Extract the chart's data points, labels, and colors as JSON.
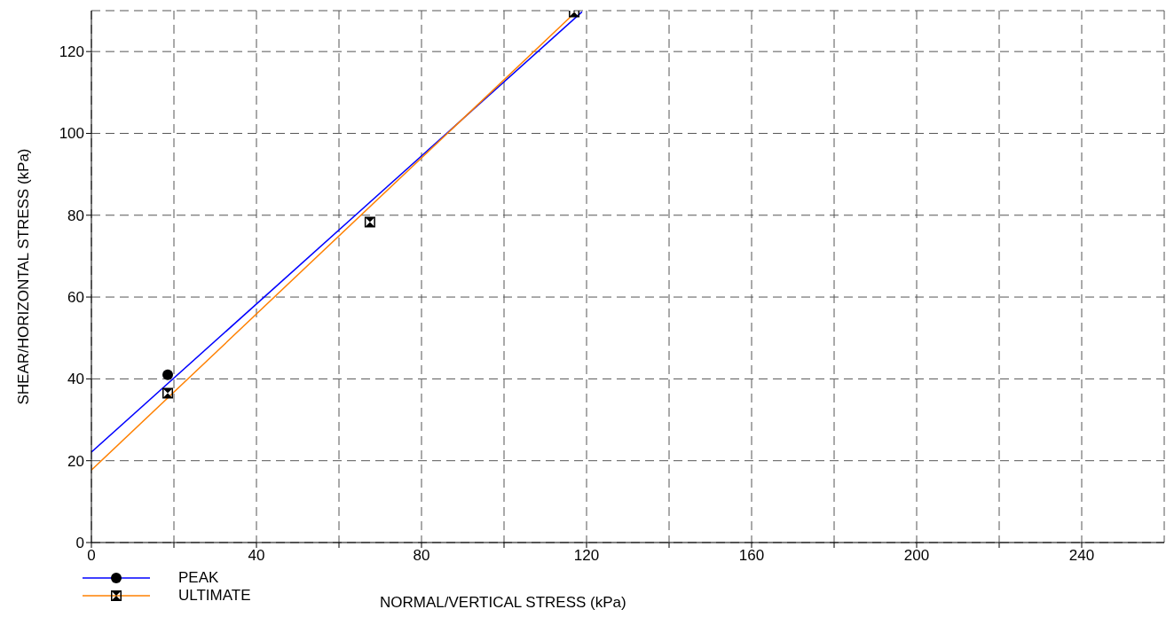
{
  "chart_data": {
    "type": "scatter",
    "xlabel": "NORMAL/VERTICAL STRESS (kPa)",
    "ylabel": "SHEAR/HORIZONTAL STRESS (kPa)",
    "xlim": [
      0,
      260
    ],
    "xticks": [
      0,
      {
        "value": 20,
        "label": null
      },
      40,
      {
        "value": 60,
        "label": null
      },
      80,
      {
        "value": 100,
        "label": null
      },
      120,
      {
        "value": 140,
        "label": null
      },
      160,
      {
        "value": 180,
        "label": null
      },
      200,
      {
        "value": 220,
        "label": null
      },
      240
    ],
    "ylim": [
      0,
      130
    ],
    "yticks": [
      0,
      20,
      40,
      60,
      80,
      100,
      120
    ],
    "grid": true,
    "legend": "bottom left",
    "series": [
      {
        "name": "PEAK",
        "type": "line",
        "color": "#0000ff",
        "x": [
          0,
          118.9
        ],
        "values": [
          22.1,
          129.7
        ]
      },
      {
        "name": "ULTIMATE",
        "type": "line",
        "color": "#ff8000",
        "x": [
          0,
          117.2
        ],
        "values": [
          17.7,
          129.5
        ]
      },
      {
        "color": "#000000",
        "marker": "circle",
        "x": [
          18.5
        ],
        "values": [
          41
        ]
      },
      {
        "color": "#000000",
        "marker": "square",
        "x": [
          18.5,
          67.5,
          117
        ],
        "values": [
          36.5,
          78.3,
          129.7
        ]
      }
    ]
  }
}
